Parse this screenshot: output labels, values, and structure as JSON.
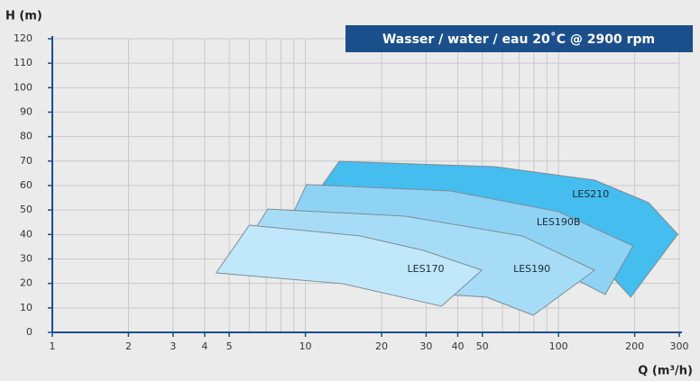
{
  "chart_data": {
    "type": "area",
    "title": "Wasser / water / eau 20˚C @ 2900 rpm",
    "x_label": "Q (m³/h)",
    "y_label": "H (m)",
    "log_x": true,
    "grid": true,
    "xlim": [
      1,
      300
    ],
    "ylim": [
      0,
      120
    ],
    "xticks": [
      1,
      2,
      3,
      4,
      5,
      10,
      20,
      30,
      40,
      50,
      100,
      200,
      300
    ],
    "xgrid": [
      1,
      2,
      3,
      4,
      5,
      6,
      7,
      8,
      9,
      10,
      20,
      30,
      40,
      50,
      60,
      70,
      80,
      90,
      100,
      200,
      300
    ],
    "yticks": [
      0,
      10,
      20,
      30,
      40,
      50,
      60,
      70,
      80,
      90,
      100,
      110,
      120
    ],
    "series": [
      {
        "name": "LES210",
        "color": "#45bdee",
        "x": [
          11.7,
          13.6,
          56.4,
          139,
          227,
          296,
          193,
          128,
          56,
          11.7
        ],
        "values": [
          60.4,
          69.9,
          67.7,
          62.2,
          53,
          40.1,
          14.4,
          34.6,
          47.5,
          60.4
        ]
      },
      {
        "name": "LES190B",
        "color": "#8fd3f4",
        "x": [
          7.9,
          9.1,
          10.1,
          37.4,
          100,
          197,
          153,
          84.9,
          24.8,
          7.9
        ],
        "values": [
          40,
          50.4,
          60.4,
          57.8,
          49.3,
          35.3,
          15.5,
          29,
          34.6,
          40
        ]
      },
      {
        "name": "LES190",
        "color": "#a7dcf6",
        "x": [
          5.25,
          7.1,
          24.8,
          72,
          139,
          79.5,
          51.9,
          31.8,
          5.25
        ],
        "values": [
          29,
          50.4,
          47.5,
          39.4,
          25.4,
          7,
          14.4,
          15.8,
          29
        ]
      },
      {
        "name": "LES170",
        "color": "#c0e7fa",
        "x": [
          4.44,
          6.0,
          16.5,
          29.3,
          49.8,
          34.5,
          14,
          4.44
        ],
        "values": [
          24.3,
          43.8,
          39.4,
          33.5,
          25.4,
          10.7,
          19.9,
          24.3
        ]
      }
    ]
  }
}
